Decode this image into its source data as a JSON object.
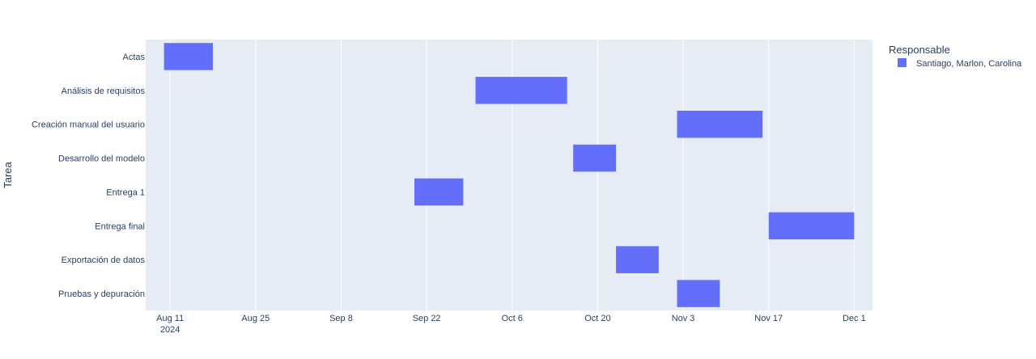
{
  "chart_data": {
    "type": "gantt",
    "ylabel": "Tarea",
    "legend": {
      "title": "Responsable",
      "position": "top-right",
      "entries": [
        {
          "name": "Santiago, Marlon, Carolina",
          "color": "#636efa"
        }
      ]
    },
    "colors": {
      "plot_background": "#e5ecf6",
      "grid": "#ffffff",
      "bar": "#636efa",
      "text": "#2a3f5f"
    },
    "grid": true,
    "x_axis": {
      "type": "date",
      "range": [
        "2024-08-07",
        "2024-12-04"
      ],
      "ticks": [
        {
          "date": "2024-08-11",
          "label": "Aug 11",
          "sublabel": "2024"
        },
        {
          "date": "2024-08-25",
          "label": "Aug 25"
        },
        {
          "date": "2024-09-08",
          "label": "Sep 8"
        },
        {
          "date": "2024-09-22",
          "label": "Sep 22"
        },
        {
          "date": "2024-10-06",
          "label": "Oct 6"
        },
        {
          "date": "2024-10-20",
          "label": "Oct 20"
        },
        {
          "date": "2024-11-03",
          "label": "Nov 3"
        },
        {
          "date": "2024-11-17",
          "label": "Nov 17"
        },
        {
          "date": "2024-12-01",
          "label": "Dec 1"
        }
      ]
    },
    "tasks": [
      {
        "task": "Actas",
        "start": "2024-08-10",
        "end": "2024-08-18",
        "responsable": "Santiago, Marlon, Carolina"
      },
      {
        "task": "Análisis de requisitos",
        "start": "2024-09-30",
        "end": "2024-10-15",
        "responsable": "Santiago, Marlon, Carolina"
      },
      {
        "task": "Creación manual del usuario",
        "start": "2024-11-02",
        "end": "2024-11-16",
        "responsable": "Santiago, Marlon, Carolina"
      },
      {
        "task": "Desarrollo del modelo",
        "start": "2024-10-16",
        "end": "2024-10-23",
        "responsable": "Santiago, Marlon, Carolina"
      },
      {
        "task": "Entrega 1",
        "start": "2024-09-20",
        "end": "2024-09-28",
        "responsable": "Santiago, Marlon, Carolina"
      },
      {
        "task": "Entrega final",
        "start": "2024-11-17",
        "end": "2024-12-01",
        "responsable": "Santiago, Marlon, Carolina"
      },
      {
        "task": "Exportación de datos",
        "start": "2024-10-23",
        "end": "2024-10-30",
        "responsable": "Santiago, Marlon, Carolina"
      },
      {
        "task": "Pruebas y depuración",
        "start": "2024-11-02",
        "end": "2024-11-09",
        "responsable": "Santiago, Marlon, Carolina"
      }
    ]
  }
}
